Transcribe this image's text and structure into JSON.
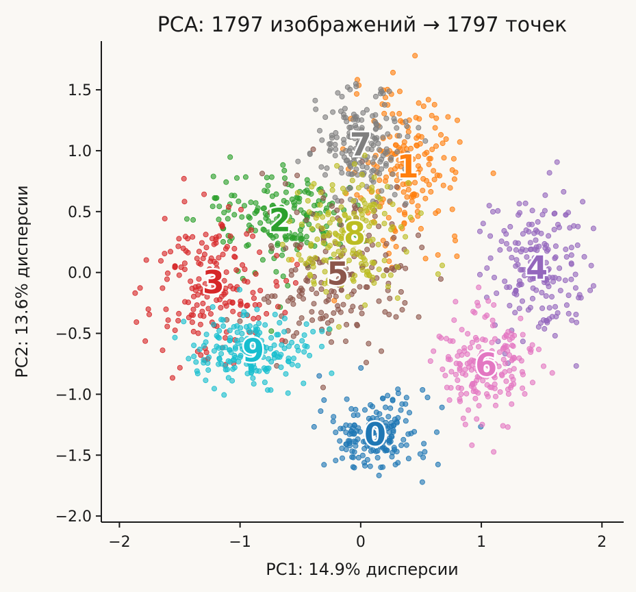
{
  "chart_data": {
    "type": "scatter",
    "title": "PCA: 1797 изображений → 1797 точек",
    "xlabel": "PC1: 14.9% дисперсии",
    "ylabel": "PC2: 13.6% дисперсии",
    "xlim": [
      -2.15,
      2.18
    ],
    "ylim": [
      -2.05,
      1.9
    ],
    "xticks": [
      -2,
      -1,
      0,
      1,
      2
    ],
    "xtick_labels": [
      "−2",
      "−1",
      "0",
      "1",
      "2"
    ],
    "yticks": [
      -2.0,
      -1.5,
      -1.0,
      -0.5,
      0.0,
      0.5,
      1.0,
      1.5
    ],
    "ytick_labels": [
      "−2.0",
      "−1.5",
      "−1.0",
      "−0.5",
      "0.0",
      "0.5",
      "1.0",
      "1.5"
    ],
    "grid": false,
    "point_count": 1797,
    "series": [
      {
        "name": "0",
        "color": "#1f77b4",
        "centroid": [
          0.12,
          -1.33
        ],
        "spread": [
          0.3,
          0.22
        ],
        "n": 178
      },
      {
        "name": "1",
        "color": "#ff7f0e",
        "centroid": [
          0.39,
          0.87
        ],
        "spread": [
          0.3,
          0.42
        ],
        "n": 182
      },
      {
        "name": "2",
        "color": "#2ca02c",
        "centroid": [
          -0.67,
          0.43
        ],
        "spread": [
          0.42,
          0.3
        ],
        "n": 177
      },
      {
        "name": "3",
        "color": "#d62728",
        "centroid": [
          -1.22,
          -0.08
        ],
        "spread": [
          0.35,
          0.4
        ],
        "n": 183
      },
      {
        "name": "4",
        "color": "#9467bd",
        "centroid": [
          1.46,
          0.04
        ],
        "spread": [
          0.28,
          0.4
        ],
        "n": 181
      },
      {
        "name": "5",
        "color": "#8c564b",
        "centroid": [
          -0.19,
          -0.01
        ],
        "spread": [
          0.42,
          0.45
        ],
        "n": 182
      },
      {
        "name": "6",
        "color": "#e377c2",
        "centroid": [
          1.04,
          -0.76
        ],
        "spread": [
          0.25,
          0.3
        ],
        "n": 181
      },
      {
        "name": "7",
        "color": "#7f7f7f",
        "centroid": [
          0.0,
          1.05
        ],
        "spread": [
          0.27,
          0.3
        ],
        "n": 179
      },
      {
        "name": "8",
        "color": "#bcbd22",
        "centroid": [
          -0.05,
          0.32
        ],
        "spread": [
          0.33,
          0.35
        ],
        "n": 174
      },
      {
        "name": "9",
        "color": "#17becf",
        "centroid": [
          -0.89,
          -0.64
        ],
        "spread": [
          0.33,
          0.2
        ],
        "n": 180
      }
    ]
  }
}
